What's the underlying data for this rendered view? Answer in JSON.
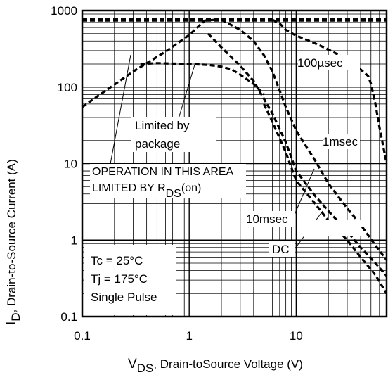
{
  "chart_data": {
    "type": "line",
    "title": "",
    "xlabel_main": "V",
    "xlabel_sub": "DS",
    "xlabel_rest": ", Drain-toSource Voltage (V)",
    "ylabel_main": "I",
    "ylabel_sub": "D",
    "ylabel_rest": ",  Drain-to-Source Current (A)",
    "x_scale": "log",
    "y_scale": "log",
    "xlim": [
      0.1,
      70
    ],
    "ylim": [
      0.1,
      1000
    ],
    "grid": true,
    "x_ticks": [
      {
        "value": 0.1,
        "label": "0.1"
      },
      {
        "value": 1,
        "label": "1"
      },
      {
        "value": 10,
        "label": "10"
      }
    ],
    "y_ticks": [
      {
        "value": 0.1,
        "label": "0.1"
      },
      {
        "value": 1,
        "label": "1"
      },
      {
        "value": 10,
        "label": "10"
      },
      {
        "value": 100,
        "label": "100"
      },
      {
        "value": 1000,
        "label": "1000"
      }
    ],
    "series": [
      {
        "name": "Limited by package",
        "style": "dashed",
        "points": [
          [
            0.1,
            780
          ],
          [
            70,
            780
          ]
        ]
      },
      {
        "name": "Limited by package",
        "style": "dashed",
        "points": [
          [
            0.1,
            740
          ],
          [
            70,
            740
          ]
        ]
      },
      {
        "name": "RDS(on) limit",
        "style": "dashed",
        "points": [
          [
            0.1,
            55
          ],
          [
            0.3,
            160
          ],
          [
            0.6,
            290
          ],
          [
            1.0,
            480
          ],
          [
            1.4,
            740
          ],
          [
            1.8,
            760
          ]
        ]
      },
      {
        "name": "Limited by package",
        "style": "dashed",
        "points": [
          [
            0.35,
            200
          ],
          [
            0.5,
            205
          ],
          [
            1.0,
            200
          ],
          [
            1.5,
            195
          ],
          [
            2.0,
            185
          ],
          [
            2.5,
            170
          ],
          [
            3.0,
            145
          ],
          [
            4.0,
            110
          ],
          [
            5.0,
            80
          ]
        ]
      },
      {
        "name": "100µsec",
        "style": "dashed",
        "points": [
          [
            6.0,
            760
          ],
          [
            7.0,
            680
          ],
          [
            8.0,
            560
          ],
          [
            10,
            470
          ],
          [
            14,
            390
          ],
          [
            20,
            310
          ],
          [
            30,
            230
          ],
          [
            40,
            170
          ],
          [
            47,
            140
          ],
          [
            50,
            110
          ],
          [
            55,
            60
          ],
          [
            60,
            30
          ],
          [
            65,
            17
          ],
          [
            70,
            10
          ]
        ]
      },
      {
        "name": "1msec",
        "style": "dashed",
        "points": [
          [
            2.0,
            760
          ],
          [
            3.0,
            560
          ],
          [
            4.0,
            400
          ],
          [
            5.0,
            260
          ],
          [
            6.0,
            160
          ],
          [
            8.0,
            55
          ],
          [
            10,
            27
          ],
          [
            15,
            11
          ],
          [
            20,
            5.5
          ],
          [
            30,
            2.6
          ],
          [
            40,
            1.6
          ],
          [
            55,
            0.85
          ],
          [
            70,
            0.55
          ]
        ]
      },
      {
        "name": "10msec",
        "style": "dashed",
        "points": [
          [
            1.5,
            500
          ],
          [
            2.0,
            330
          ],
          [
            3.0,
            190
          ],
          [
            4.0,
            120
          ],
          [
            5.0,
            70
          ],
          [
            6.0,
            45
          ],
          [
            8.0,
            19
          ],
          [
            10,
            8.0
          ],
          [
            15,
            3.8
          ],
          [
            20,
            2.4
          ],
          [
            30,
            1.3
          ],
          [
            40,
            0.8
          ],
          [
            55,
            0.5
          ],
          [
            70,
            0.34
          ]
        ]
      },
      {
        "name": "DC",
        "style": "dashed",
        "points": [
          [
            5.0,
            60
          ],
          [
            6.0,
            35
          ],
          [
            8.0,
            14
          ],
          [
            10,
            6.0
          ],
          [
            15,
            3.0
          ],
          [
            20,
            1.8
          ],
          [
            30,
            1.0
          ],
          [
            40,
            0.6
          ],
          [
            55,
            0.35
          ],
          [
            70,
            0.2
          ]
        ]
      }
    ],
    "annotations": {
      "t100us": "100µsec",
      "t1ms": "1msec",
      "t10ms": "10msec",
      "tdc": "DC",
      "limited_line1": "Limited by",
      "limited_line2": "package",
      "op_line1": "OPERATION IN THIS AREA",
      "op_line2_main": "LIMITED BY R",
      "op_line2_sub": "DS",
      "op_line2_rest": "(on)",
      "cond1": "Tc = 25°C",
      "cond2": "Tj = 175°C",
      "cond3": "Single Pulse"
    }
  }
}
